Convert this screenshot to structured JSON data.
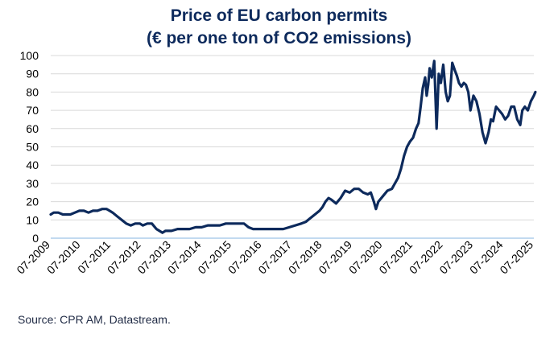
{
  "chart_data": {
    "type": "line",
    "title_line1": "Price of EU carbon permits",
    "title_line2": "(€ per one ton of CO2 emissions)",
    "xlabel": "",
    "ylabel": "",
    "ylim": [
      0,
      100
    ],
    "yticks": [
      0,
      10,
      20,
      30,
      40,
      50,
      60,
      70,
      80,
      90,
      100
    ],
    "xlim": [
      2009.5,
      2025.5
    ],
    "xticks": [
      {
        "x": 2009.5,
        "label": "07-2009"
      },
      {
        "x": 2010.5,
        "label": "07-2010"
      },
      {
        "x": 2011.5,
        "label": "07-2011"
      },
      {
        "x": 2012.5,
        "label": "07-2012"
      },
      {
        "x": 2013.5,
        "label": "07-2013"
      },
      {
        "x": 2014.5,
        "label": "07-2014"
      },
      {
        "x": 2015.5,
        "label": "07-2015"
      },
      {
        "x": 2016.5,
        "label": "07-2016"
      },
      {
        "x": 2017.5,
        "label": "07-2017"
      },
      {
        "x": 2018.5,
        "label": "07-2018"
      },
      {
        "x": 2019.5,
        "label": "07-2019"
      },
      {
        "x": 2020.5,
        "label": "07-2020"
      },
      {
        "x": 2021.5,
        "label": "07-2021"
      },
      {
        "x": 2022.5,
        "label": "07-2022"
      },
      {
        "x": 2023.5,
        "label": "07-2023"
      },
      {
        "x": 2024.5,
        "label": "07-2024"
      },
      {
        "x": 2025.5,
        "label": "07-2025"
      }
    ],
    "grid": true,
    "series": [
      {
        "name": "EU carbon permit price",
        "color": "#0d2a5c",
        "x": [
          2009.5,
          2009.6,
          2009.75,
          2009.9,
          2010.0,
          2010.15,
          2010.3,
          2010.45,
          2010.6,
          2010.75,
          2010.9,
          2011.05,
          2011.2,
          2011.35,
          2011.45,
          2011.55,
          2011.7,
          2011.85,
          2012.0,
          2012.15,
          2012.3,
          2012.45,
          2012.55,
          2012.7,
          2012.85,
          2013.0,
          2013.1,
          2013.2,
          2013.3,
          2013.5,
          2013.7,
          2013.9,
          2014.1,
          2014.3,
          2014.5,
          2014.7,
          2014.9,
          2015.1,
          2015.3,
          2015.5,
          2015.7,
          2015.9,
          2016.05,
          2016.2,
          2016.35,
          2016.5,
          2016.65,
          2016.8,
          2017.0,
          2017.2,
          2017.4,
          2017.6,
          2017.8,
          2017.95,
          2018.1,
          2018.25,
          2018.4,
          2018.5,
          2018.6,
          2018.7,
          2018.8,
          2018.95,
          2019.1,
          2019.25,
          2019.4,
          2019.55,
          2019.7,
          2019.85,
          2020.0,
          2020.1,
          2020.2,
          2020.27,
          2020.35,
          2020.5,
          2020.65,
          2020.8,
          2020.9,
          2021.0,
          2021.1,
          2021.2,
          2021.3,
          2021.4,
          2021.5,
          2021.6,
          2021.68,
          2021.75,
          2021.82,
          2021.9,
          2021.95,
          2022.0,
          2022.05,
          2022.12,
          2022.2,
          2022.28,
          2022.35,
          2022.42,
          2022.5,
          2022.58,
          2022.65,
          2022.72,
          2022.8,
          2022.88,
          2022.95,
          2023.02,
          2023.1,
          2023.18,
          2023.25,
          2023.33,
          2023.4,
          2023.5,
          2023.6,
          2023.7,
          2023.8,
          2023.9,
          2024.0,
          2024.08,
          2024.15,
          2024.25,
          2024.35,
          2024.45,
          2024.55,
          2024.65,
          2024.75,
          2024.85,
          2024.95,
          2025.05,
          2025.12,
          2025.2,
          2025.3,
          2025.4,
          2025.5,
          2025.55
        ],
        "values": [
          13,
          14,
          14,
          13,
          13,
          13,
          14,
          15,
          15,
          14,
          15,
          15,
          16,
          16,
          15,
          14,
          12,
          10,
          8,
          7,
          8,
          8,
          7,
          8,
          8,
          5,
          4,
          3,
          4,
          4,
          5,
          5,
          5,
          6,
          6,
          7,
          7,
          7,
          8,
          8,
          8,
          8,
          6,
          5,
          5,
          5,
          5,
          5,
          5,
          5,
          6,
          7,
          8,
          9,
          11,
          13,
          15,
          17,
          20,
          22,
          21,
          19,
          22,
          26,
          25,
          27,
          27,
          25,
          24,
          25,
          20,
          16,
          20,
          23,
          26,
          27,
          30,
          33,
          38,
          45,
          50,
          53,
          55,
          60,
          63,
          72,
          82,
          88,
          78,
          84,
          93,
          88,
          97,
          60,
          90,
          85,
          95,
          80,
          75,
          78,
          96,
          92,
          89,
          85,
          83,
          85,
          84,
          80,
          70,
          78,
          75,
          68,
          58,
          52,
          58,
          65,
          64,
          72,
          70,
          68,
          65,
          67,
          72,
          72,
          65,
          62,
          70,
          72,
          70,
          75,
          78,
          80
        ]
      }
    ]
  },
  "source_text": "Source: CPR AM, Datastream."
}
